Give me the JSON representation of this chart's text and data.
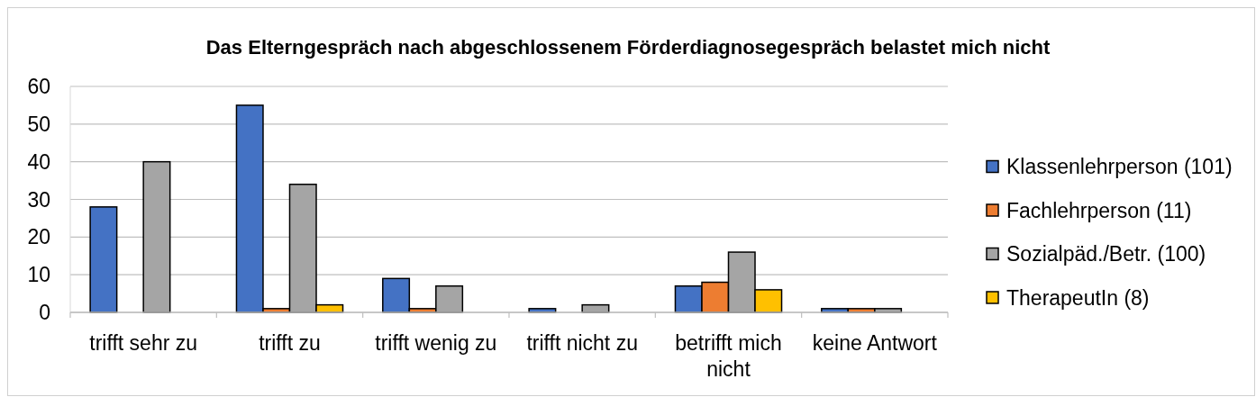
{
  "chart_data": {
    "type": "bar",
    "title": "Das Elterngespräch nach abgeschlossenem Förderdiagnosegespräch belastet mich nicht",
    "categories": [
      "trifft sehr zu",
      "trifft zu",
      "trifft wenig zu",
      "trifft nicht zu",
      "betrifft mich nicht",
      "keine Antwort"
    ],
    "series": [
      {
        "name": "Klassenlehrperson (101)",
        "color": "#4472c4",
        "values": [
          28,
          55,
          9,
          1,
          7,
          1
        ]
      },
      {
        "name": "Fachlehrperson (11)",
        "color": "#ed7d31",
        "values": [
          0,
          1,
          1,
          0,
          8,
          1
        ]
      },
      {
        "name": "Sozialpäd./Betr. (100)",
        "color": "#a5a5a5",
        "values": [
          40,
          34,
          7,
          2,
          16,
          1
        ]
      },
      {
        "name": "TherapeutIn (8)",
        "color": "#ffc000",
        "values": [
          0,
          2,
          0,
          0,
          6,
          0
        ]
      }
    ],
    "ylim": [
      0,
      60
    ],
    "yticks": [
      0,
      10,
      20,
      30,
      40,
      50,
      60
    ],
    "grid": "y",
    "legend": "right"
  }
}
